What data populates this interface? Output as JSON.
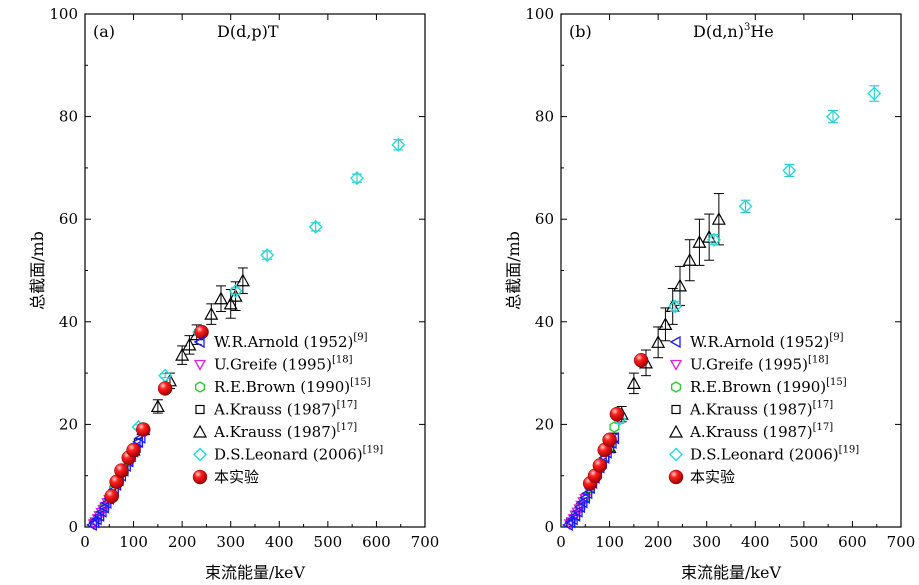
{
  "chart_data": [
    {
      "type": "scatter",
      "panel_label": "(a)",
      "title": "D(d,p)T",
      "title_sup": "",
      "xlabel": "束流能量/keV",
      "ylabel": "总截面/mb",
      "xlim": [
        0,
        700
      ],
      "ylim": [
        0,
        100
      ],
      "xticks": [
        0,
        100,
        200,
        300,
        400,
        500,
        600,
        700
      ],
      "yticks": [
        0,
        20,
        40,
        60,
        80,
        100
      ],
      "legend_position": "bottom-right",
      "series": [
        {
          "name": "W.R.Arnold (1952)",
          "ref": "[9]",
          "marker": "triangle-left",
          "color": "#1a1aff",
          "x": [
            15,
            20,
            25,
            30,
            35,
            40,
            45,
            50,
            55,
            60,
            65,
            70,
            75,
            80,
            85,
            90,
            95,
            100,
            105,
            110,
            115
          ],
          "y": [
            0.4,
            0.9,
            1.5,
            2.2,
            3.0,
            3.8,
            4.7,
            5.5,
            6.4,
            7.3,
            8.2,
            9.1,
            10.0,
            11.0,
            11.9,
            12.8,
            13.8,
            14.7,
            15.6,
            16.6,
            17.4
          ]
        },
        {
          "name": "U.Greife (1995)",
          "ref": "[18]",
          "marker": "triangle-down",
          "color": "#e020e0",
          "x": [
            18,
            22,
            26,
            30,
            34,
            38,
            42,
            46,
            50
          ],
          "y": [
            0.6,
            1.0,
            1.6,
            2.2,
            2.8,
            3.4,
            4.0,
            4.7,
            5.3
          ]
        },
        {
          "name": "R.E.Brown (1990)",
          "ref": "[15]",
          "marker": "hexagon",
          "color": "#22cc22",
          "x": [
            40,
            50,
            60,
            70,
            80,
            90,
            100
          ],
          "y": [
            3.8,
            5.5,
            7.3,
            9.1,
            10.9,
            12.9,
            14.7
          ]
        },
        {
          "name": "A.Krauss (1987)",
          "ref": "[17]",
          "marker": "square",
          "color": "#000000",
          "x": [
            20,
            30,
            40,
            50,
            60,
            70,
            80,
            90,
            100,
            110
          ],
          "y": [
            0.8,
            2.1,
            3.7,
            5.4,
            7.2,
            9.0,
            10.8,
            12.7,
            14.6,
            16.4
          ]
        },
        {
          "name": "A.Krauss (1987)",
          "ref": "[17]",
          "marker": "triangle-up",
          "color": "#000000",
          "x": [
            100,
            120,
            150,
            175,
            200,
            215,
            230,
            260,
            280,
            300,
            310,
            325
          ],
          "y": [
            15,
            19,
            23.5,
            28.5,
            33.5,
            35.5,
            37.5,
            41.5,
            44.5,
            43.5,
            45,
            48
          ],
          "err": [
            0.8,
            1.0,
            1.3,
            1.5,
            1.8,
            1.8,
            1.9,
            2.0,
            2.5,
            2.8,
            2.8,
            2.5
          ]
        },
        {
          "name": "D.S.Leonard (2006)",
          "ref": "[19]",
          "marker": "diamond",
          "color": "#22dddd",
          "x": [
            110,
            165,
            235,
            310,
            375,
            475,
            560,
            645
          ],
          "y": [
            19.5,
            29.5,
            38,
            46,
            53,
            58.5,
            68,
            74.5
          ],
          "err": [
            0.4,
            0.4,
            0.5,
            0.6,
            0.8,
            0.8,
            0.8,
            1.0
          ]
        },
        {
          "name": "本实验",
          "ref": "",
          "marker": "sphere",
          "color": "#e00000",
          "x": [
            55,
            65,
            75,
            90,
            100,
            120,
            165,
            240
          ],
          "y": [
            6,
            8.8,
            11,
            13.5,
            15,
            19,
            27,
            38
          ]
        }
      ]
    },
    {
      "type": "scatter",
      "panel_label": "(b)",
      "title": "D(d,n)",
      "title_sup": "3",
      "title_suffix": "He",
      "xlabel": "束流能量/keV",
      "ylabel": "总截面/mb",
      "xlim": [
        0,
        700
      ],
      "ylim": [
        0,
        100
      ],
      "xticks": [
        0,
        100,
        200,
        300,
        400,
        500,
        600,
        700
      ],
      "yticks": [
        0,
        20,
        40,
        60,
        80,
        100
      ],
      "legend_position": "bottom-right",
      "series": [
        {
          "name": "W.R.Arnold (1952)",
          "ref": "[9]",
          "marker": "triangle-left",
          "color": "#1a1aff",
          "x": [
            15,
            20,
            25,
            30,
            35,
            40,
            45,
            50,
            55,
            60,
            65,
            70,
            75,
            80,
            85,
            90,
            95,
            100,
            105,
            110
          ],
          "y": [
            0.4,
            0.9,
            1.5,
            2.2,
            3.0,
            3.9,
            4.8,
            5.7,
            6.6,
            7.6,
            8.6,
            9.6,
            10.6,
            11.6,
            12.5,
            13.5,
            14.5,
            15.5,
            16.4,
            17.3
          ]
        },
        {
          "name": "U.Greife (1995)",
          "ref": "[18]",
          "marker": "triangle-down",
          "color": "#e020e0",
          "x": [
            18,
            22,
            26,
            30,
            34,
            38,
            42,
            46,
            50
          ],
          "y": [
            0.6,
            1.0,
            1.6,
            2.3,
            2.9,
            3.5,
            4.2,
            4.9,
            5.5
          ]
        },
        {
          "name": "R.E.Brown (1990)",
          "ref": "[15]",
          "marker": "hexagon",
          "color": "#22cc22",
          "x": [
            40,
            50,
            60,
            70,
            80,
            90,
            100,
            110
          ],
          "y": [
            3.9,
            5.7,
            7.6,
            9.6,
            11.6,
            13.6,
            15.6,
            19.5
          ]
        },
        {
          "name": "A.Krauss (1987)",
          "ref": "[17]",
          "marker": "square",
          "color": "#000000",
          "x": [
            20,
            30,
            40,
            50,
            60,
            70,
            80,
            90,
            100,
            110
          ],
          "y": [
            0.9,
            2.2,
            3.8,
            5.6,
            7.5,
            9.5,
            11.5,
            13.5,
            15.5,
            17.5
          ]
        },
        {
          "name": "A.Krauss (1987)",
          "ref": "[17]",
          "marker": "triangle-up",
          "color": "#000000",
          "x": [
            100,
            125,
            150,
            175,
            200,
            215,
            230,
            245,
            265,
            285,
            305,
            325
          ],
          "y": [
            15.5,
            22,
            28,
            32,
            36,
            39.5,
            43,
            47,
            52,
            55.5,
            56.5,
            60
          ],
          "err": [
            1.0,
            1.5,
            2.0,
            2.5,
            3.0,
            3.2,
            3.5,
            3.8,
            4.0,
            4.5,
            4.5,
            5.0
          ]
        },
        {
          "name": "D.S.Leonard (2006)",
          "ref": "[19]",
          "marker": "diamond",
          "color": "#22dddd",
          "x": [
            120,
            235,
            315,
            380,
            470,
            560,
            645
          ],
          "y": [
            21,
            43,
            56,
            62.5,
            69.5,
            80,
            84.5
          ],
          "err": [
            0.8,
            1.0,
            1.0,
            1.2,
            1.2,
            1.2,
            1.5
          ]
        },
        {
          "name": "本实验",
          "ref": "",
          "marker": "sphere",
          "color": "#e00000",
          "x": [
            60,
            70,
            80,
            90,
            100,
            115,
            165
          ],
          "y": [
            8.5,
            10,
            12,
            15,
            17,
            22,
            32.5
          ]
        }
      ]
    }
  ]
}
